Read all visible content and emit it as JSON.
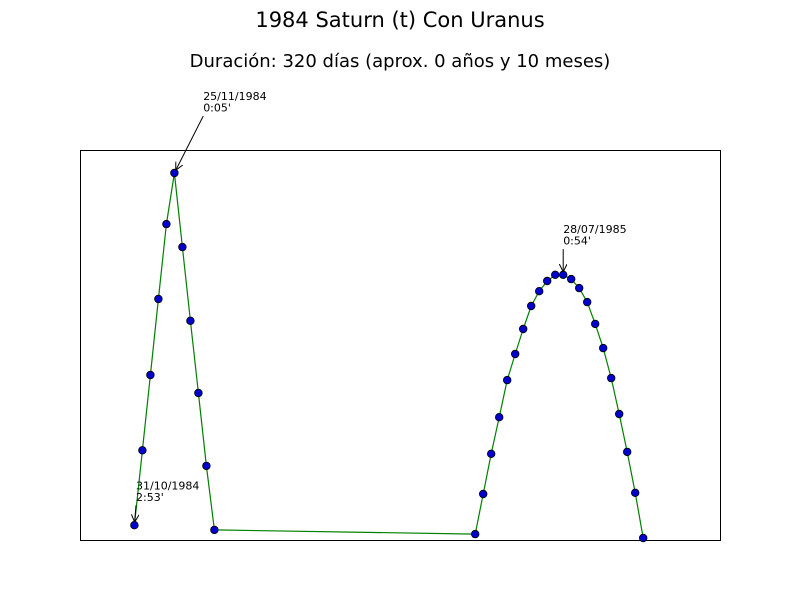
{
  "chart_data": {
    "type": "line",
    "title": "1984 Saturn (t) Con Uranus",
    "subtitle": "Duración: 320 días (aprox. 0 años y 10 meses)",
    "x_axis": {
      "range": [
        0,
        40
      ],
      "ticks_visible": false
    },
    "y_axis": {
      "range": [
        0,
        100
      ],
      "ticks_visible": false,
      "inverted": true
    },
    "grid": false,
    "line_color": "#008000",
    "marker_color": "#0000cc",
    "marker_edge_color": "#000000",
    "points": [
      {
        "x": 3.4,
        "y": 96.2
      },
      {
        "x": 3.9,
        "y": 77.0
      },
      {
        "x": 4.4,
        "y": 57.7
      },
      {
        "x": 4.9,
        "y": 38.2
      },
      {
        "x": 5.4,
        "y": 19.0
      },
      {
        "x": 5.9,
        "y": 5.9
      },
      {
        "x": 6.4,
        "y": 24.9
      },
      {
        "x": 6.9,
        "y": 43.8
      },
      {
        "x": 7.4,
        "y": 62.3
      },
      {
        "x": 7.9,
        "y": 81.0
      },
      {
        "x": 8.4,
        "y": 97.4
      },
      {
        "x": 24.7,
        "y": 98.5
      },
      {
        "x": 25.2,
        "y": 88.2
      },
      {
        "x": 25.7,
        "y": 77.9
      },
      {
        "x": 26.2,
        "y": 68.5
      },
      {
        "x": 26.7,
        "y": 59.0
      },
      {
        "x": 27.2,
        "y": 52.3
      },
      {
        "x": 27.7,
        "y": 45.9
      },
      {
        "x": 28.2,
        "y": 40.0
      },
      {
        "x": 28.7,
        "y": 36.2
      },
      {
        "x": 29.2,
        "y": 33.6
      },
      {
        "x": 29.7,
        "y": 32.0
      },
      {
        "x": 30.2,
        "y": 32.0
      },
      {
        "x": 30.7,
        "y": 33.1
      },
      {
        "x": 31.2,
        "y": 35.4
      },
      {
        "x": 31.7,
        "y": 39.0
      },
      {
        "x": 32.2,
        "y": 44.6
      },
      {
        "x": 32.7,
        "y": 50.8
      },
      {
        "x": 33.2,
        "y": 58.5
      },
      {
        "x": 33.7,
        "y": 67.7
      },
      {
        "x": 34.2,
        "y": 77.4
      },
      {
        "x": 34.7,
        "y": 87.9
      },
      {
        "x": 35.2,
        "y": 99.5
      }
    ],
    "annotations": [
      {
        "date": "31/10/1984",
        "value": "2:53'",
        "x": 3.4,
        "y": 96.2,
        "text_x": 3.5,
        "text_y": 87.0
      },
      {
        "date": "25/11/1984",
        "value": "0:05'",
        "x": 5.9,
        "y": 5.9,
        "text_x": 7.7,
        "text_y": -12.8
      },
      {
        "date": "28/07/1985",
        "value": "0:54'",
        "x": 30.2,
        "y": 32.0,
        "text_x": 30.2,
        "text_y": 21.3
      }
    ]
  }
}
